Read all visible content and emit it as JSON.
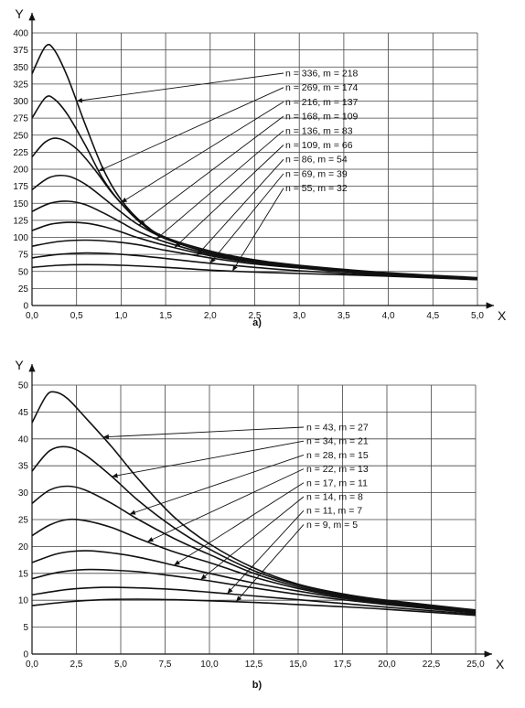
{
  "chart_data": [
    {
      "type": "line",
      "panel_label": "a)",
      "xlabel": "X",
      "ylabel": "Y",
      "xlim": [
        0,
        5
      ],
      "ylim": [
        0,
        400
      ],
      "xticks": [
        0.0,
        0.5,
        1.0,
        1.5,
        2.0,
        2.5,
        3.0,
        3.5,
        4.0,
        4.5,
        5.0
      ],
      "xtick_labels": [
        "0,0",
        "0,5",
        "1,0",
        "1,5",
        "2,0",
        "2,5",
        "3,0",
        "3,5",
        "4,0",
        "4,5",
        "5,0"
      ],
      "yticks": [
        0,
        25,
        50,
        75,
        100,
        125,
        150,
        175,
        200,
        225,
        250,
        275,
        300,
        325,
        350,
        375,
        400
      ],
      "ytick_labels": [
        "0",
        "25",
        "50",
        "75",
        "100",
        "125",
        "150",
        "175",
        "200",
        "225",
        "250",
        "275",
        "300",
        "325",
        "350",
        "375",
        "400"
      ],
      "grid": true,
      "series": [
        {
          "name": "n = 336, m = 218",
          "pointer_x": 0.5,
          "x": [
            0,
            0.15,
            0.25,
            0.4,
            0.6,
            0.8,
            1.0,
            1.25,
            1.5,
            2.0,
            2.5,
            3.0,
            4.0,
            5.0
          ],
          "y": [
            340,
            380,
            375,
            335,
            265,
            200,
            155,
            120,
            100,
            80,
            67,
            59,
            48,
            41
          ]
        },
        {
          "name": "n = 269, m = 174",
          "pointer_x": 0.75,
          "x": [
            0,
            0.15,
            0.25,
            0.4,
            0.6,
            0.8,
            1.0,
            1.25,
            1.5,
            2.0,
            2.5,
            3.0,
            4.0,
            5.0
          ],
          "y": [
            275,
            305,
            303,
            280,
            235,
            185,
            150,
            118,
            98,
            78,
            66,
            58,
            47,
            40
          ]
        },
        {
          "name": "n = 216, m = 137",
          "pointer_x": 1.0,
          "x": [
            0,
            0.15,
            0.3,
            0.5,
            0.7,
            0.9,
            1.1,
            1.3,
            1.5,
            2.0,
            2.5,
            3.0,
            4.0,
            5.0
          ],
          "y": [
            218,
            240,
            245,
            230,
            200,
            165,
            137,
            115,
            98,
            77,
            65,
            57,
            47,
            40
          ]
        },
        {
          "name": "n = 168, m = 109",
          "pointer_x": 1.2,
          "x": [
            0,
            0.2,
            0.4,
            0.6,
            0.8,
            1.0,
            1.2,
            1.5,
            2.0,
            2.5,
            3.0,
            4.0,
            5.0
          ],
          "y": [
            170,
            188,
            190,
            178,
            158,
            137,
            118,
            98,
            77,
            65,
            57,
            47,
            40
          ]
        },
        {
          "name": "n = 136, m = 83",
          "pointer_x": 1.4,
          "x": [
            0,
            0.2,
            0.4,
            0.6,
            0.8,
            1.0,
            1.2,
            1.5,
            2.0,
            2.5,
            3.0,
            4.0,
            5.0
          ],
          "y": [
            138,
            150,
            153,
            148,
            136,
            122,
            108,
            93,
            75,
            64,
            56,
            46,
            40
          ]
        },
        {
          "name": "n = 109, m = 66",
          "pointer_x": 1.6,
          "x": [
            0,
            0.2,
            0.4,
            0.6,
            0.8,
            1.0,
            1.2,
            1.5,
            2.0,
            2.5,
            3.0,
            4.0,
            5.0
          ],
          "y": [
            110,
            119,
            122,
            121,
            116,
            108,
            99,
            88,
            73,
            63,
            56,
            46,
            39
          ]
        },
        {
          "name": "n = 86, m = 54",
          "pointer_x": 1.85,
          "x": [
            0,
            0.3,
            0.6,
            0.9,
            1.2,
            1.5,
            2.0,
            2.5,
            3.0,
            4.0,
            5.0
          ],
          "y": [
            87,
            94,
            96,
            94,
            89,
            81,
            70,
            61,
            55,
            45,
            39
          ]
        },
        {
          "name": "n = 69, m = 39",
          "pointer_x": 2.0,
          "x": [
            0,
            0.3,
            0.6,
            0.9,
            1.2,
            1.5,
            2.0,
            2.5,
            3.0,
            4.0,
            5.0
          ],
          "y": [
            70,
            75,
            77,
            76,
            73,
            69,
            62,
            56,
            51,
            44,
            38
          ]
        },
        {
          "name": "n = 55, m = 32",
          "pointer_x": 2.25,
          "x": [
            0,
            0.3,
            0.6,
            1.0,
            1.5,
            2.0,
            2.5,
            3.0,
            4.0,
            5.0
          ],
          "y": [
            56,
            59,
            60,
            59,
            56,
            52,
            49,
            47,
            43,
            38
          ]
        }
      ]
    },
    {
      "type": "line",
      "panel_label": "b)",
      "xlabel": "X",
      "ylabel": "Y",
      "xlim": [
        0,
        25
      ],
      "ylim": [
        0,
        50
      ],
      "xticks": [
        0,
        2.5,
        5,
        7.5,
        10,
        12.5,
        15,
        17.5,
        20,
        22.5,
        25
      ],
      "xtick_labels": [
        "0,0",
        "2,5",
        "5,0",
        "7,5",
        "10,0",
        "12,5",
        "15,0",
        "17,5",
        "20,0",
        "22,5",
        "25,0"
      ],
      "yticks": [
        0,
        5,
        10,
        15,
        20,
        25,
        30,
        35,
        40,
        45,
        50
      ],
      "ytick_labels": [
        "0",
        "5",
        "10",
        "15",
        "20",
        "25",
        "30",
        "35",
        "40",
        "45",
        "50"
      ],
      "grid": true,
      "series": [
        {
          "name": "n = 43, m = 27",
          "pointer_x": 4.0,
          "x": [
            0,
            0.8,
            1.3,
            2.0,
            3.0,
            4.5,
            6.0,
            8.0,
            10.0,
            12.5,
            15.0,
            17.5,
            20.0,
            25.0
          ],
          "y": [
            43,
            48,
            48.7,
            47.5,
            44,
            38.5,
            32.5,
            25.5,
            20.5,
            16,
            13,
            11.2,
            10,
            8.2
          ]
        },
        {
          "name": "n = 34, m = 21",
          "pointer_x": 4.5,
          "x": [
            0,
            1.0,
            2.0,
            3.0,
            4.5,
            6.0,
            8.0,
            10.0,
            12.5,
            15.0,
            17.5,
            20.0,
            25.0
          ],
          "y": [
            34,
            37.8,
            38.5,
            37,
            33,
            28.5,
            23.5,
            19.5,
            15.5,
            12.8,
            11.0,
            9.8,
            8.0
          ]
        },
        {
          "name": "n = 28, m = 15",
          "pointer_x": 5.5,
          "x": [
            0,
            1.0,
            2.0,
            3.0,
            4.5,
            6.0,
            8.0,
            10.0,
            12.5,
            15.0,
            17.5,
            20.0,
            25.0
          ],
          "y": [
            28,
            30.5,
            31.2,
            30.5,
            28,
            25,
            21.5,
            18.5,
            15,
            12.5,
            10.8,
            9.6,
            7.9
          ]
        },
        {
          "name": "n = 22, m = 13",
          "pointer_x": 6.5,
          "x": [
            0,
            1.0,
            2.0,
            3.0,
            4.5,
            6.0,
            8.0,
            10.0,
            12.5,
            15.0,
            17.5,
            20.0,
            25.0
          ],
          "y": [
            22,
            24,
            25,
            24.8,
            23.5,
            21.5,
            19,
            17,
            14.3,
            12.2,
            10.6,
            9.5,
            7.8
          ]
        },
        {
          "name": "n = 17, m = 11",
          "pointer_x": 8.0,
          "x": [
            0,
            1.5,
            3.0,
            4.5,
            6.0,
            8.0,
            10.0,
            12.5,
            15.0,
            17.5,
            20.0,
            25.0
          ],
          "y": [
            17,
            18.7,
            19.2,
            18.8,
            18,
            16.5,
            15,
            13.2,
            11.7,
            10.4,
            9.4,
            7.7
          ]
        },
        {
          "name": "n = 14, m = 8",
          "pointer_x": 9.5,
          "x": [
            0,
            1.5,
            3.0,
            4.5,
            6.0,
            8.0,
            10.0,
            12.5,
            15.0,
            17.5,
            20.0,
            25.0
          ],
          "y": [
            14,
            15.2,
            15.7,
            15.6,
            15.3,
            14.5,
            13.6,
            12.3,
            11.1,
            10.1,
            9.2,
            7.6
          ]
        },
        {
          "name": "n = 11, m = 7",
          "pointer_x": 11.0,
          "x": [
            0,
            2.0,
            4.0,
            6.0,
            8.0,
            10.0,
            12.5,
            15.0,
            17.5,
            20.0,
            25.0
          ],
          "y": [
            11,
            12,
            12.4,
            12.3,
            12,
            11.5,
            10.8,
            10.1,
            9.4,
            8.7,
            7.4
          ]
        },
        {
          "name": "n = 9, m = 5",
          "pointer_x": 11.5,
          "x": [
            0,
            2.0,
            4.0,
            6.0,
            8.0,
            10.0,
            12.5,
            15.0,
            17.5,
            20.0,
            25.0
          ],
          "y": [
            9,
            9.7,
            10.1,
            10.2,
            10.1,
            9.9,
            9.6,
            9.2,
            8.8,
            8.3,
            7.2
          ]
        }
      ]
    }
  ]
}
